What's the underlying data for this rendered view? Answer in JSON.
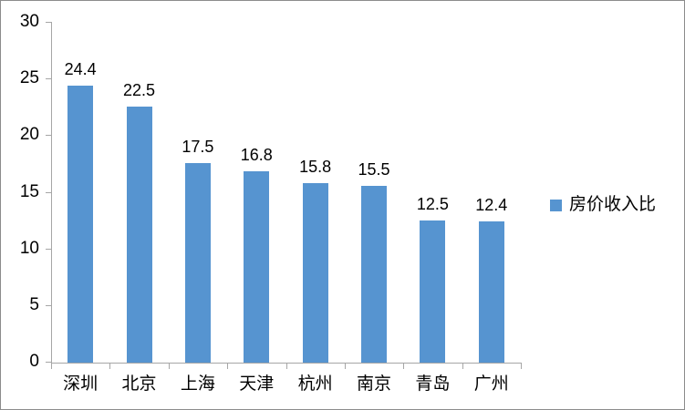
{
  "chart_data": {
    "type": "bar",
    "title": "",
    "categories": [
      "深圳",
      "北京",
      "上海",
      "天津",
      "杭州",
      "南京",
      "青岛",
      "广州"
    ],
    "values": [
      24.4,
      22.5,
      17.5,
      16.8,
      15.8,
      15.5,
      12.5,
      12.4
    ],
    "value_labels": [
      "24.4",
      "22.5",
      "17.5",
      "16.8",
      "15.8",
      "15.5",
      "12.5",
      "12.4"
    ],
    "series_name": "房价收入比",
    "xlabel": "",
    "ylabel": "",
    "ylim": [
      0,
      30
    ],
    "yticks": [
      0,
      5,
      10,
      15,
      20,
      25,
      30
    ],
    "ytick_labels": [
      "0",
      "5",
      "10",
      "15",
      "20",
      "25",
      "30"
    ],
    "grid": false,
    "legend_position": "right",
    "bar_color": "#5694d0",
    "axis_color": "#a6a6a6",
    "text_color": "#000000",
    "frame_border_color": "#8c8c8c"
  }
}
